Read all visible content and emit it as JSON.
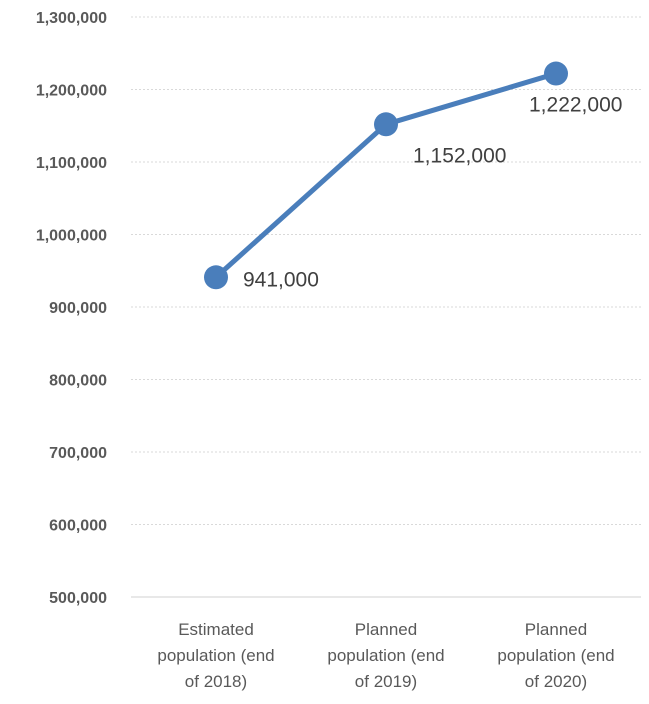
{
  "chart_data": {
    "type": "line",
    "title": "",
    "xlabel": "",
    "ylabel": "",
    "categories": [
      [
        "Estimated",
        "population (end",
        "of 2018)"
      ],
      [
        "Planned",
        "population (end",
        "of 2019)"
      ],
      [
        "Planned",
        "population (end",
        "of 2020)"
      ]
    ],
    "series": [
      {
        "values": [
          941000,
          1152000,
          1222000
        ],
        "data_labels": [
          "941,000",
          "1,152,000",
          "1,222,000"
        ],
        "color": "#4a7ebb"
      }
    ],
    "ylim": [
      500000,
      1300000
    ],
    "yticks": [
      500000,
      600000,
      700000,
      800000,
      900000,
      1000000,
      1100000,
      1200000,
      1300000
    ],
    "ytick_labels": [
      "500,000",
      "600,000",
      "700,000",
      "800,000",
      "900,000",
      "1,000,000",
      "1,100,000",
      "1,200,000",
      "1,300,000"
    ],
    "grid": true,
    "legend": "none"
  }
}
